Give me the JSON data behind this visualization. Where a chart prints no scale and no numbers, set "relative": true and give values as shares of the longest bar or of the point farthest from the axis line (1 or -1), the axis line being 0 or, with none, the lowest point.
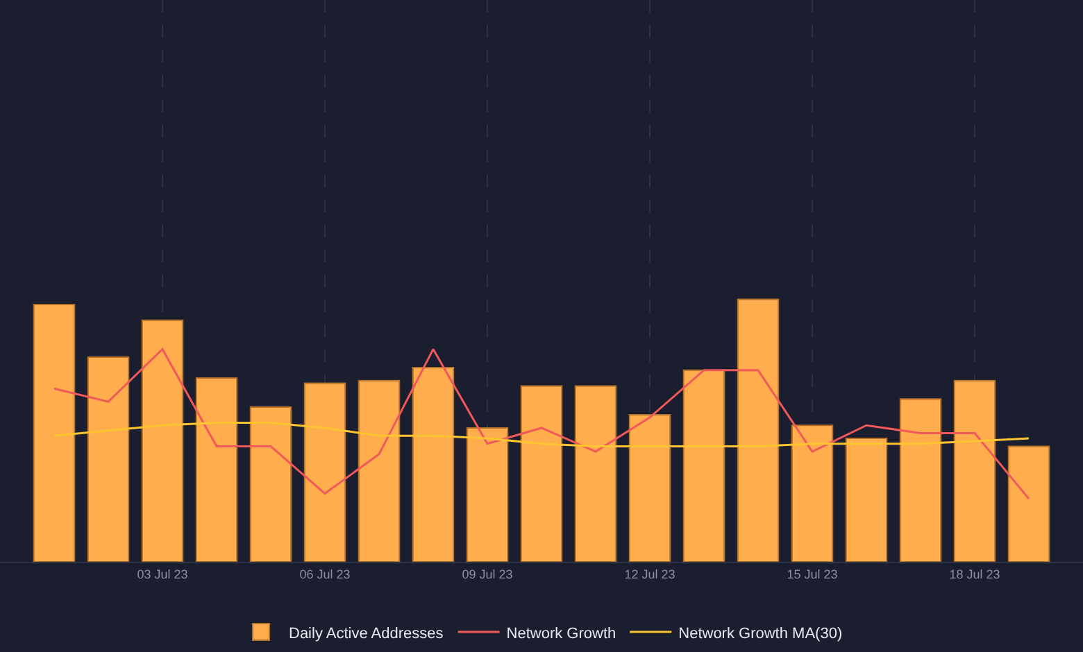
{
  "chart_data": {
    "type": "bar",
    "relative": true,
    "x": [
      "--07-01",
      "--07-02",
      "--07-03",
      "--07-04",
      "--07-05",
      "--07-06",
      "--07-07",
      "--07-08",
      "--07-09",
      "--07-10",
      "--07-11",
      "--07-12",
      "--07-13",
      "--07-14",
      "--07-15",
      "--07-16",
      "--07-17",
      "--07-18",
      "--07-19"
    ],
    "xlim": [
      "--06-30",
      "--07-20"
    ],
    "xticks": [
      {
        "value": "--07-03",
        "label": "03 Jul 23"
      },
      {
        "value": "--07-06",
        "label": "06 Jul 23"
      },
      {
        "value": "--07-09",
        "label": "09 Jul 23"
      },
      {
        "value": "--07-12",
        "label": "12 Jul 23"
      },
      {
        "value": "--07-15",
        "label": "15 Jul 23"
      },
      {
        "value": "--07-18",
        "label": "18 Jul 23"
      }
    ],
    "series": [
      {
        "name": "Daily Active Addresses",
        "color": "#ffad4d",
        "values": [
          0.98,
          0.78,
          0.92,
          0.7,
          0.59,
          0.68,
          0.69,
          0.74,
          0.51,
          0.67,
          0.67,
          0.56,
          0.73,
          1.0,
          0.52,
          0.47,
          0.62,
          0.69,
          0.44
        ]
      },
      {
        "name": "Network Growth",
        "type": "line",
        "color": "#f0585a",
        "values": [
          0.66,
          0.61,
          0.81,
          0.44,
          0.44,
          0.26,
          0.41,
          0.81,
          0.45,
          0.51,
          0.42,
          0.55,
          0.73,
          0.73,
          0.42,
          0.52,
          0.49,
          0.49,
          0.24
        ]
      },
      {
        "name": "Network Growth MA(30)",
        "type": "line",
        "color": "#ffc531",
        "values": [
          0.48,
          0.5,
          0.52,
          0.53,
          0.53,
          0.51,
          0.48,
          0.48,
          0.47,
          0.45,
          0.44,
          0.44,
          0.44,
          0.44,
          0.45,
          0.45,
          0.45,
          0.46,
          0.47
        ]
      }
    ],
    "grid": "x",
    "legend": "bottom",
    "marker": "none",
    "line_style": "solid"
  }
}
